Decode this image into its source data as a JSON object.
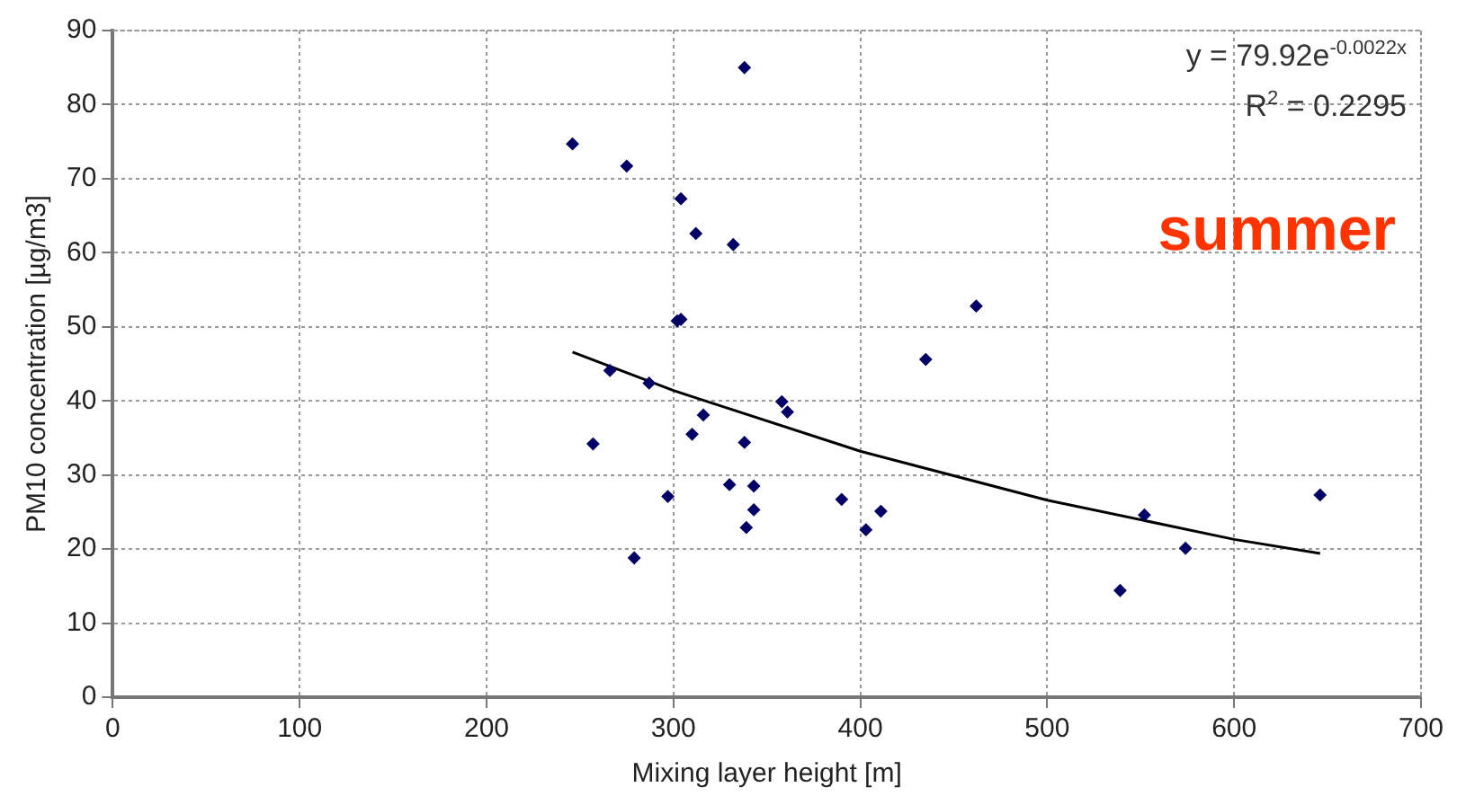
{
  "chart_data": {
    "type": "scatter",
    "xlabel": "Mixing layer height [m]",
    "ylabel": "PM10 concentration [µg/m3]",
    "xlim": [
      0,
      700
    ],
    "xticks": [
      0,
      100,
      200,
      300,
      400,
      500,
      600,
      700
    ],
    "ylim": [
      0,
      90
    ],
    "yticks": [
      0,
      10,
      20,
      30,
      40,
      50,
      60,
      70,
      80,
      90
    ],
    "grid": true,
    "legend": false,
    "marker": "diamond",
    "series": [
      {
        "type": "scatter",
        "color": "#000066",
        "x": [
          338,
          246,
          275,
          304,
          312,
          332,
          302,
          304,
          266,
          287,
          257,
          316,
          310,
          358,
          361,
          338,
          297,
          330,
          343,
          343,
          339,
          279,
          390,
          403,
          411,
          462,
          435,
          552,
          574,
          539,
          646
        ],
        "values": [
          85,
          74.7,
          71.7,
          67.3,
          62.6,
          61.1,
          50.8,
          51,
          44.1,
          42.4,
          34.2,
          38.1,
          35.5,
          39.9,
          38.5,
          34.4,
          27.1,
          28.7,
          28.5,
          25.3,
          22.9,
          18.8,
          26.7,
          22.6,
          25.1,
          52.8,
          45.6,
          24.6,
          20.1,
          14.4,
          27.3
        ]
      },
      {
        "type": "line",
        "color": "#000000",
        "marker": "none",
        "x": [
          246,
          300,
          400,
          500,
          600,
          646
        ],
        "values": [
          46.6,
          41.4,
          33.2,
          26.6,
          21.3,
          19.4
        ]
      }
    ],
    "annotations": [
      "y = 79.92e$^{-0.0022x}$",
      "R$^{2}$ = 0.2295",
      "summer"
    ]
  }
}
